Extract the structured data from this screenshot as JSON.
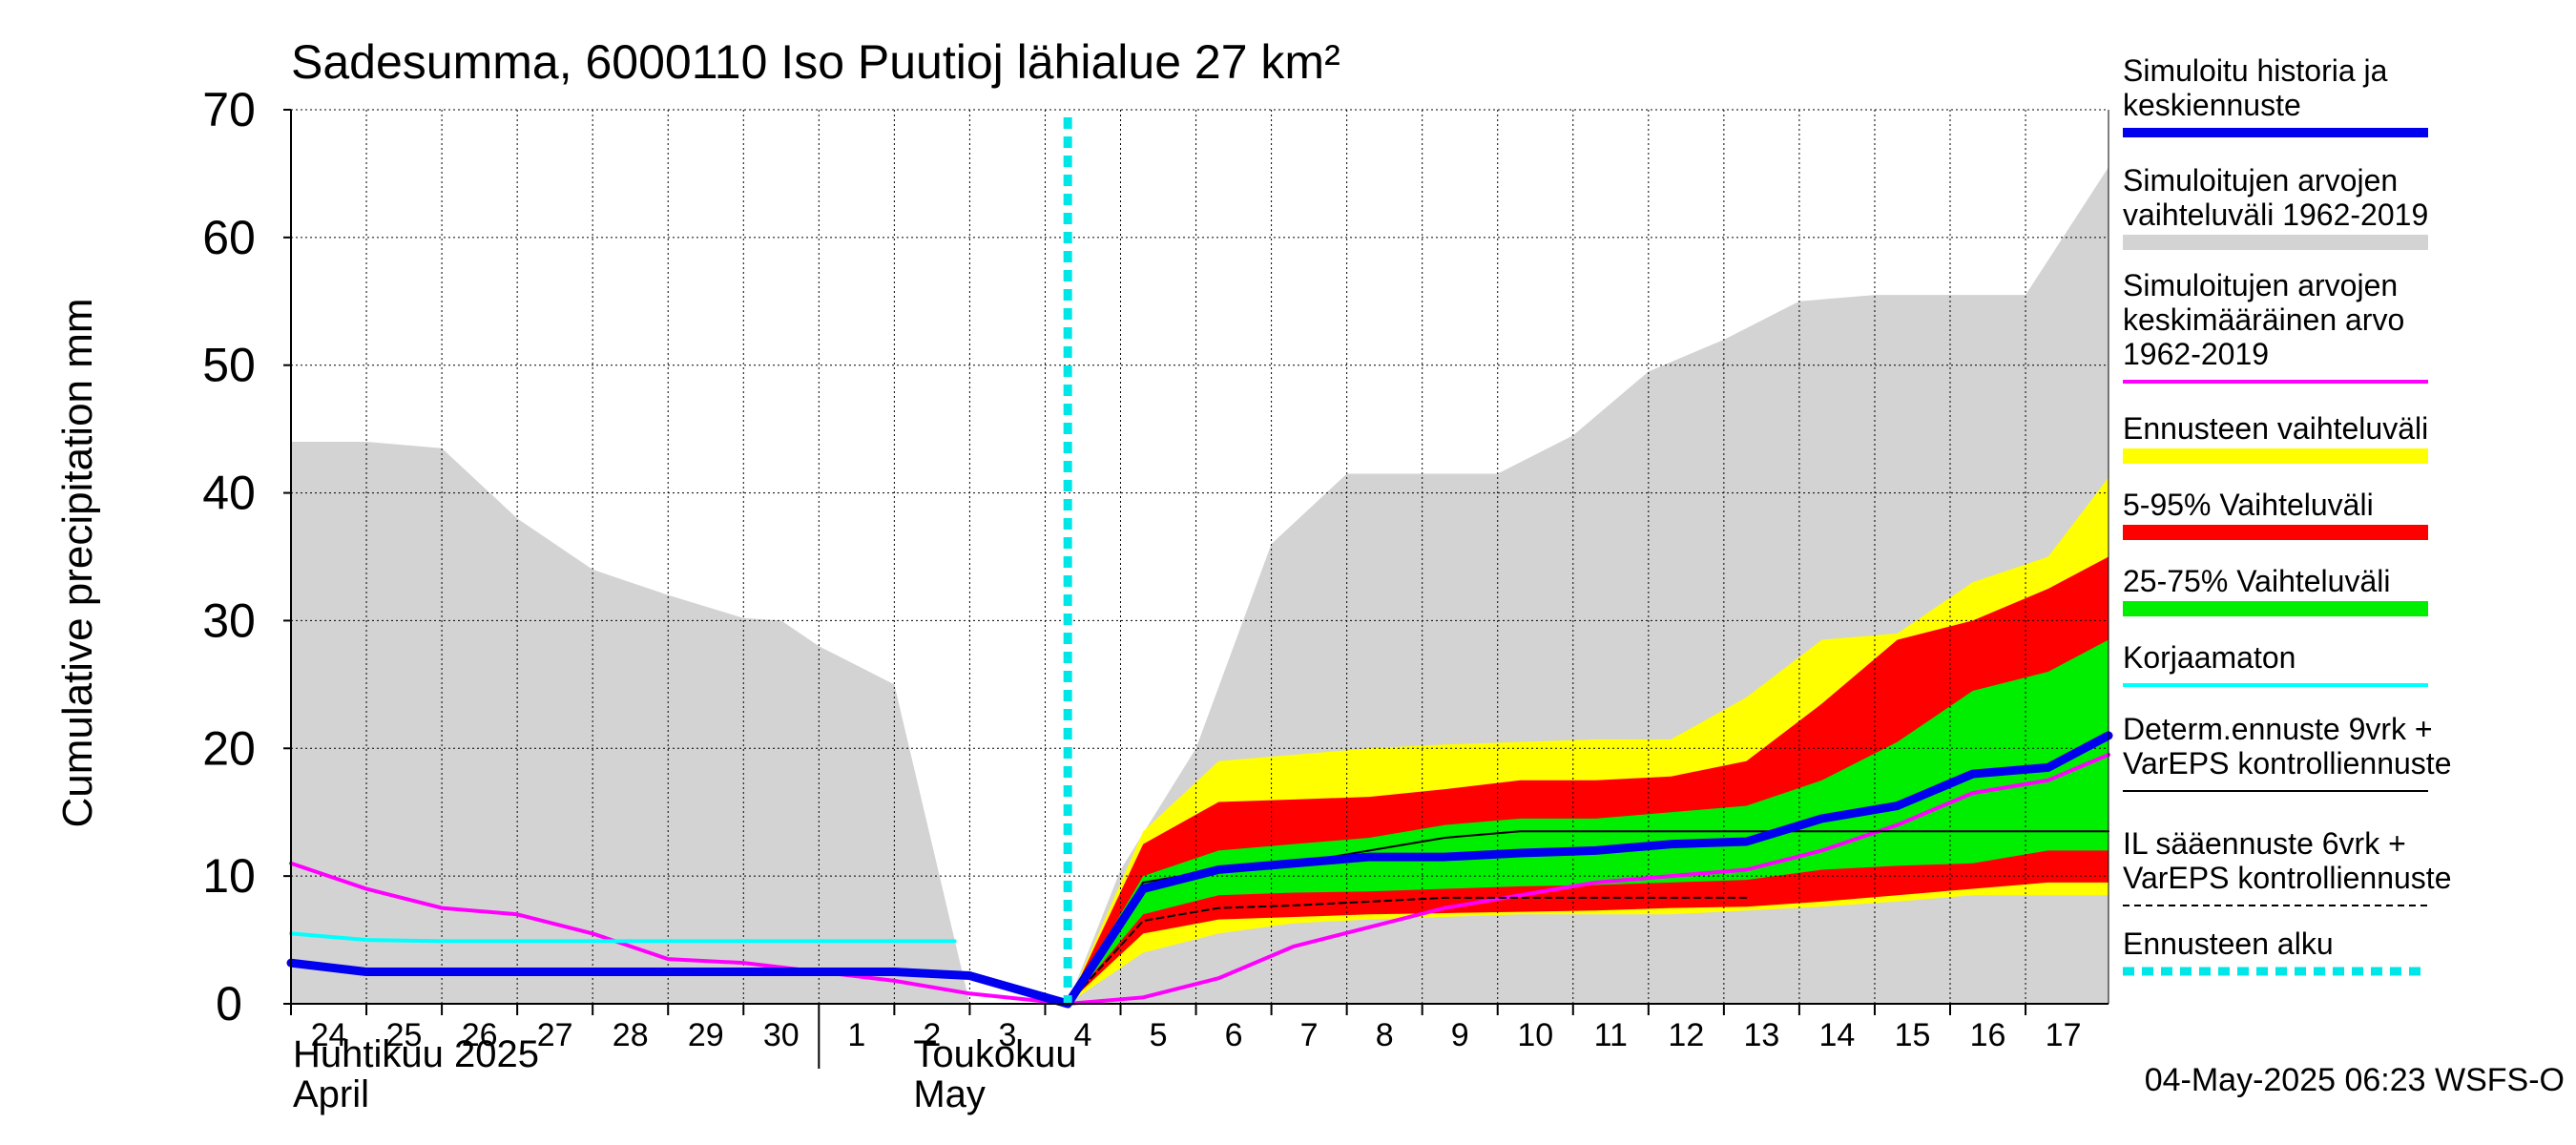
{
  "chart_data": {
    "type": "area",
    "title": "Sadesumma, 6000110 Iso Puutioj lähialue 27 km²",
    "ylabel": "Cumulative precipitation   mm",
    "ylim": [
      0,
      70
    ],
    "yticks": [
      0,
      10,
      20,
      30,
      40,
      50,
      60,
      70
    ],
    "xlim": [
      -0.5,
      23.6
    ],
    "day_labels": [
      "24",
      "25",
      "26",
      "27",
      "28",
      "29",
      "30",
      "1",
      "2",
      "3",
      "4",
      "5",
      "6",
      "7",
      "8",
      "9",
      "10",
      "11",
      "12",
      "13",
      "14",
      "15",
      "16",
      "17"
    ],
    "month_labels": [
      {
        "line1": "Huhtikuu  2025",
        "line2": "April"
      },
      {
        "line1": "Toukokuu",
        "line2": "May"
      }
    ],
    "footer": "04-May-2025 06:23 WSFS-O",
    "forecast_start_x": 9.8,
    "grid": true,
    "legend_position": "right",
    "legend": [
      {
        "label": "Simuloitu historia ja keskiennuste",
        "lines": [
          "Simuloitu historia ja",
          "keskiennuste"
        ],
        "color": "#0000ee",
        "style": "thick"
      },
      {
        "label": "Simuloitujen arvojen vaihteluväli 1962-2019",
        "lines": [
          "Simuloitujen arvojen",
          "vaihteluväli 1962-2019"
        ],
        "color": "#d3d3d3",
        "style": "band"
      },
      {
        "label": "Simuloitujen arvojen keskimääräinen arvo 1962-2019",
        "lines": [
          "Simuloitujen arvojen",
          "keskimääräinen arvo",
          "   1962-2019"
        ],
        "color": "#ff00ff",
        "style": "line"
      },
      {
        "label": "Ennusteen vaihteluväli",
        "lines": [
          "Ennusteen vaihteluväli"
        ],
        "color": "#ffff00",
        "style": "band"
      },
      {
        "label": "5-95% Vaihteluväli",
        "lines": [
          "5-95% Vaihteluväli"
        ],
        "color": "#ff0000",
        "style": "band"
      },
      {
        "label": "25-75% Vaihteluväli",
        "lines": [
          "25-75% Vaihteluväli"
        ],
        "color": "#00ee00",
        "style": "band"
      },
      {
        "label": "Korjaamaton",
        "lines": [
          "Korjaamaton"
        ],
        "color": "#00ffff",
        "style": "line"
      },
      {
        "label": "Determ.ennuste 9vrk + VarEPS kontrolliennuste",
        "lines": [
          "Determ.ennuste 9vrk +",
          "VarEPS kontrolliennuste"
        ],
        "color": "#000000",
        "style": "thin"
      },
      {
        "label": "IL sääennuste 6vrk + VarEPS kontrolliennuste",
        "lines": [
          "IL sääennuste 6vrk  +",
          "  VarEPS kontrolliennuste"
        ],
        "color": "#000000",
        "style": "dashed"
      },
      {
        "label": "Ennusteen alku",
        "lines": [
          "Ennusteen alku"
        ],
        "color": "#00e5e5",
        "style": "dotted"
      }
    ],
    "series": [
      {
        "name": "Simuloitujen arvojen vaihteluväli 1962-2019",
        "kind": "band",
        "color": "#d3d3d3",
        "x": [
          -0.5,
          0.5,
          1.5,
          2.5,
          3.5,
          4.5,
          5.5,
          6.0,
          6.5,
          7.5,
          8.5,
          9.8,
          10.5,
          11.5,
          12.5,
          13.5,
          14.5,
          15.5,
          16.5,
          17.5,
          18.5,
          19.5,
          20.5,
          21.5,
          22.5,
          23.6
        ],
        "upper": [
          44,
          44,
          43.5,
          38,
          34,
          32,
          30.2,
          30,
          28,
          25,
          0,
          0,
          10.5,
          20,
          36,
          41.5,
          41.5,
          41.5,
          44.5,
          49.5,
          52,
          55,
          55.5,
          55.5,
          55.5,
          65.5
        ],
        "lower": [
          0,
          0,
          0,
          0,
          0,
          0,
          0,
          0,
          0,
          0,
          0,
          0,
          0,
          0,
          0,
          0,
          0,
          0,
          0,
          0,
          0,
          0,
          0,
          0,
          0,
          0
        ]
      },
      {
        "name": "Ennusteen vaihteluväli",
        "kind": "band",
        "color": "#ffff00",
        "x": [
          9.8,
          10.8,
          11.8,
          12.8,
          13.8,
          14.8,
          15.8,
          16.8,
          17.8,
          18.8,
          19.8,
          20.8,
          21.8,
          22.8,
          23.6
        ],
        "upper": [
          0,
          13.5,
          19,
          19.5,
          20,
          20.3,
          20.5,
          20.7,
          20.7,
          24,
          28.5,
          29,
          33,
          35,
          41.2
        ],
        "lower": [
          0,
          4,
          5.5,
          6.3,
          6.6,
          6.8,
          7.0,
          7.0,
          7.0,
          7.3,
          7.6,
          8.0,
          8.5,
          8.5,
          8.5
        ]
      },
      {
        "name": "5-95% Vaihteluväli",
        "kind": "band",
        "color": "#ff0000",
        "x": [
          9.8,
          10.8,
          11.8,
          12.8,
          13.8,
          14.8,
          15.8,
          16.8,
          17.8,
          18.8,
          19.8,
          20.8,
          21.8,
          22.8,
          23.6
        ],
        "upper": [
          0,
          12.5,
          15.8,
          16.0,
          16.2,
          16.8,
          17.5,
          17.5,
          17.8,
          19.0,
          23.5,
          28.5,
          30.0,
          32.5,
          35.0
        ],
        "lower": [
          0,
          5.5,
          6.6,
          6.8,
          7.0,
          7.1,
          7.2,
          7.3,
          7.5,
          7.6,
          8.0,
          8.5,
          9.0,
          9.5,
          9.5
        ]
      },
      {
        "name": "25-75% Vaihteluväli",
        "kind": "band",
        "color": "#00ee00",
        "x": [
          9.8,
          10.8,
          11.8,
          12.8,
          13.8,
          14.8,
          15.8,
          16.8,
          17.8,
          18.8,
          19.8,
          20.8,
          21.8,
          22.8,
          23.6
        ],
        "upper": [
          0,
          10.0,
          12.0,
          12.5,
          13.0,
          14.0,
          14.5,
          14.5,
          15.0,
          15.5,
          17.5,
          20.5,
          24.5,
          26.0,
          28.5
        ],
        "lower": [
          0,
          7.0,
          8.5,
          8.7,
          8.8,
          9.0,
          9.2,
          9.3,
          9.5,
          9.7,
          10.5,
          10.8,
          11.0,
          12.0,
          12.0
        ]
      },
      {
        "name": "Simuloitujen arvojen keskimääräinen arvo 1962-2019",
        "kind": "line",
        "color": "#ff00ff",
        "width": 4,
        "x": [
          -0.5,
          0.5,
          1.5,
          2.5,
          3.5,
          4.5,
          5.5,
          6.5,
          7.5,
          8.5,
          9.8,
          10.8,
          11.8,
          12.8,
          13.8,
          14.8,
          15.8,
          16.8,
          17.8,
          18.8,
          19.8,
          20.8,
          21.8,
          22.8,
          23.6
        ],
        "y": [
          11,
          9,
          7.5,
          7,
          5.5,
          3.5,
          3.2,
          2.5,
          1.8,
          0.8,
          0,
          0.5,
          2,
          4.5,
          6,
          7.5,
          8.5,
          9.5,
          10,
          10.5,
          12,
          14,
          16.5,
          17.5,
          19.5
        ]
      },
      {
        "name": "Korjaamaton",
        "kind": "line",
        "color": "#00ffff",
        "width": 4,
        "x": [
          -0.5,
          0.5,
          1.5,
          2.5,
          3.5,
          4.5,
          5.5,
          6.5,
          7.5,
          8.3
        ],
        "y": [
          5.5,
          5,
          4.9,
          4.9,
          4.9,
          4.9,
          4.9,
          4.9,
          4.9,
          4.9
        ]
      },
      {
        "name": "Determ.ennuste 9vrk + VarEPS kontrolliennuste",
        "kind": "line",
        "color": "#000000",
        "width": 2,
        "x": [
          9.8,
          10.8,
          11.8,
          12.8,
          13.8,
          14.8,
          15.8,
          16.8,
          17.8,
          18.8,
          19.8,
          20.8,
          21.8,
          22.8,
          23.6
        ],
        "y": [
          0,
          9.5,
          10.5,
          11.0,
          12.0,
          13.0,
          13.5,
          13.5,
          13.5,
          13.5,
          13.5,
          13.5,
          13.5,
          13.5,
          13.5
        ]
      },
      {
        "name": "IL sääennuste 6vrk + VarEPS kontrolliennuste",
        "kind": "line",
        "color": "#000000",
        "width": 2,
        "dash": "7,5",
        "x": [
          9.8,
          10.8,
          11.8,
          12.8,
          13.8,
          14.8,
          15.8,
          16.8,
          17.8,
          18.8
        ],
        "y": [
          0,
          6.5,
          7.5,
          7.7,
          8.0,
          8.3,
          8.3,
          8.3,
          8.3,
          8.3
        ]
      },
      {
        "name": "Simuloitu historia ja keskiennuste",
        "kind": "line",
        "color": "#0000ee",
        "width": 9,
        "x": [
          -0.5,
          0.5,
          1.5,
          2.5,
          3.5,
          4.5,
          5.5,
          6.5,
          7.5,
          8.5,
          9.8,
          10.8,
          11.8,
          12.8,
          13.8,
          14.8,
          15.8,
          16.8,
          17.8,
          18.8,
          19.8,
          20.8,
          21.8,
          22.8,
          23.6
        ],
        "y": [
          3.2,
          2.5,
          2.5,
          2.5,
          2.5,
          2.5,
          2.5,
          2.5,
          2.5,
          2.2,
          0,
          9.0,
          10.5,
          11.0,
          11.5,
          11.5,
          11.8,
          12.0,
          12.5,
          12.7,
          14.5,
          15.5,
          18.0,
          18.5,
          21.0
        ]
      }
    ]
  }
}
